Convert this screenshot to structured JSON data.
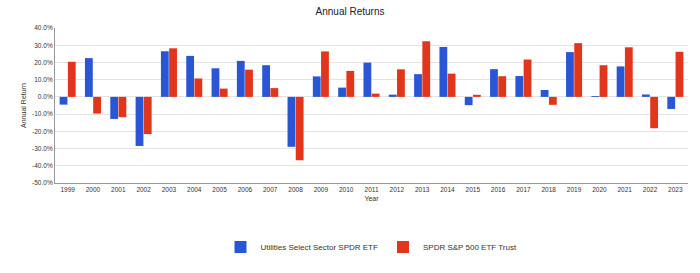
{
  "chart_data": {
    "type": "bar",
    "title": "Annual Returns",
    "x_label": "Year",
    "y_label": "Annual Return",
    "categories": [
      "1999",
      "2000",
      "2001",
      "2002",
      "2003",
      "2004",
      "2005",
      "2006",
      "2007",
      "2008",
      "2009",
      "2010",
      "2011",
      "2012",
      "2013",
      "2014",
      "2015",
      "2016",
      "2017",
      "2018",
      "2019",
      "2020",
      "2021",
      "2022",
      "2023"
    ],
    "series": [
      {
        "name": "Utilities Select Sector SPDR ETF",
        "color": "#2a56d6",
        "values": [
          -4.5,
          22.5,
          -12.8,
          -28.5,
          26.5,
          23.8,
          16.6,
          20.9,
          18.4,
          -29.0,
          11.9,
          5.4,
          19.9,
          1.3,
          13.2,
          29.0,
          -4.8,
          16.1,
          12.1,
          4.0,
          26.0,
          0.5,
          17.7,
          1.4,
          -7.0
        ]
      },
      {
        "name": "SPDR S&P 500 ETF Trust",
        "color": "#e2361c",
        "values": [
          20.4,
          -9.7,
          -11.8,
          -21.6,
          28.2,
          10.7,
          4.8,
          15.8,
          5.1,
          -36.8,
          26.4,
          15.1,
          1.9,
          16.0,
          32.3,
          13.5,
          1.2,
          12.0,
          21.7,
          -4.6,
          31.2,
          18.4,
          28.8,
          -18.2,
          26.2
        ]
      }
    ],
    "ylim": [
      -50,
      40
    ],
    "yticks": [
      {
        "value": -50,
        "label": "-50.0%"
      },
      {
        "value": -40,
        "label": "-40.0%"
      },
      {
        "value": -30,
        "label": "-30.0%"
      },
      {
        "value": -20,
        "label": "-20.0%"
      },
      {
        "value": -10,
        "label": "-10.0%"
      },
      {
        "value": 0,
        "label": "0.0%"
      },
      {
        "value": 10,
        "label": "10.0%"
      },
      {
        "value": 20,
        "label": "20.0%"
      },
      {
        "value": 30,
        "label": "30.0%"
      },
      {
        "value": 40,
        "label": "40.0%"
      }
    ],
    "grid": true,
    "legend": "bottom"
  }
}
